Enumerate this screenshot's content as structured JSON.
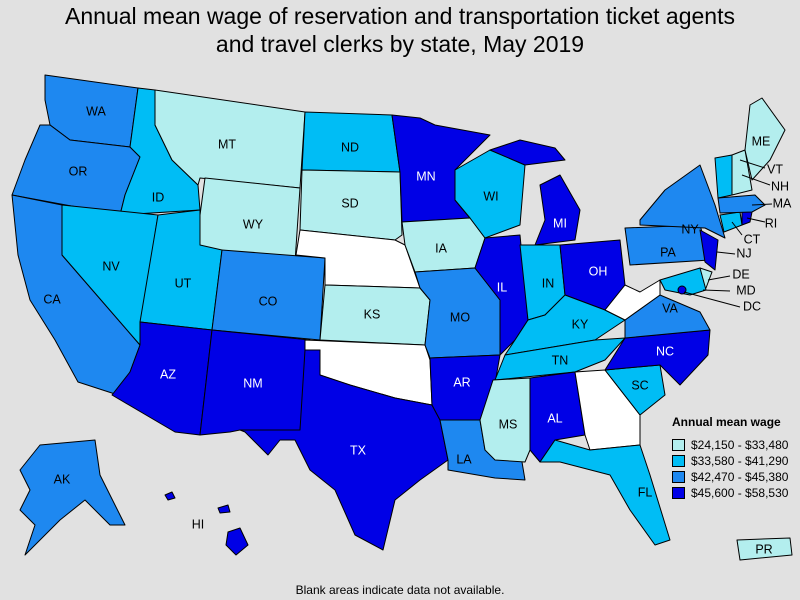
{
  "title": {
    "line1": "Annual mean wage of reservation and transportation ticket agents",
    "line2": "and travel clerks by state, May 2019"
  },
  "legend": {
    "title": "Annual mean wage",
    "items": [
      {
        "label": "$24,150 - $33,480",
        "color": "#b3eeee"
      },
      {
        "label": "$33,580 - $41,290",
        "color": "#00bdf5"
      },
      {
        "label": "$42,470 - $45,380",
        "color": "#1e88f0"
      },
      {
        "label": "$45,600 - $58,530",
        "color": "#0000e6"
      }
    ]
  },
  "footnote": "Blank areas indicate data not available.",
  "colors": {
    "background": "#e1e1e1",
    "no_data": "#ffffff",
    "tier1": "#b3eeee",
    "tier2": "#00bdf5",
    "tier3": "#1e88f0",
    "tier4": "#0000e6"
  },
  "states": {
    "WA": {
      "label": "WA",
      "tier": 3
    },
    "OR": {
      "label": "OR",
      "tier": 3
    },
    "CA": {
      "label": "CA",
      "tier": 3
    },
    "ID": {
      "label": "ID",
      "tier": 2
    },
    "NV": {
      "label": "NV",
      "tier": 2
    },
    "MT": {
      "label": "MT",
      "tier": 1
    },
    "WY": {
      "label": "WY",
      "tier": 1
    },
    "UT": {
      "label": "UT",
      "tier": 2
    },
    "AZ": {
      "label": "AZ",
      "tier": 4
    },
    "CO": {
      "label": "CO",
      "tier": 3
    },
    "NM": {
      "label": "NM",
      "tier": 4
    },
    "ND": {
      "label": "ND",
      "tier": 2
    },
    "SD": {
      "label": "SD",
      "tier": 1
    },
    "NE": {
      "label": "",
      "tier": 0
    },
    "KS": {
      "label": "KS",
      "tier": 1
    },
    "OK": {
      "label": "",
      "tier": 0
    },
    "TX": {
      "label": "TX",
      "tier": 4
    },
    "MN": {
      "label": "MN",
      "tier": 4
    },
    "IA": {
      "label": "IA",
      "tier": 1
    },
    "MO": {
      "label": "MO",
      "tier": 3
    },
    "AR": {
      "label": "AR",
      "tier": 4
    },
    "LA": {
      "label": "LA",
      "tier": 3
    },
    "WI": {
      "label": "WI",
      "tier": 2
    },
    "IL": {
      "label": "IL",
      "tier": 4
    },
    "MI": {
      "label": "MI",
      "tier": 4
    },
    "IN": {
      "label": "IN",
      "tier": 2
    },
    "OH": {
      "label": "OH",
      "tier": 4
    },
    "KY": {
      "label": "KY",
      "tier": 2
    },
    "TN": {
      "label": "TN",
      "tier": 2
    },
    "MS": {
      "label": "MS",
      "tier": 1
    },
    "AL": {
      "label": "AL",
      "tier": 4
    },
    "GA": {
      "label": "",
      "tier": 0
    },
    "FL": {
      "label": "FL",
      "tier": 2
    },
    "SC": {
      "label": "SC",
      "tier": 2
    },
    "NC": {
      "label": "NC",
      "tier": 4
    },
    "VA": {
      "label": "VA",
      "tier": 3
    },
    "WV": {
      "label": "",
      "tier": 0
    },
    "PA": {
      "label": "PA",
      "tier": 3
    },
    "NY": {
      "label": "NY",
      "tier": 3
    },
    "NJ": {
      "label": "NJ",
      "tier": 4
    },
    "DE": {
      "label": "DE",
      "tier": 1
    },
    "MD": {
      "label": "MD",
      "tier": 2
    },
    "DC": {
      "label": "DC",
      "tier": 4
    },
    "CT": {
      "label": "CT",
      "tier": 2
    },
    "RI": {
      "label": "RI",
      "tier": 4
    },
    "MA": {
      "label": "MA",
      "tier": 3
    },
    "VT": {
      "label": "VT",
      "tier": 2
    },
    "NH": {
      "label": "NH",
      "tier": 1
    },
    "ME": {
      "label": "ME",
      "tier": 1
    },
    "AK": {
      "label": "AK",
      "tier": 3
    },
    "HI": {
      "label": "HI",
      "tier": 4
    },
    "PR": {
      "label": "PR",
      "tier": 1
    }
  }
}
